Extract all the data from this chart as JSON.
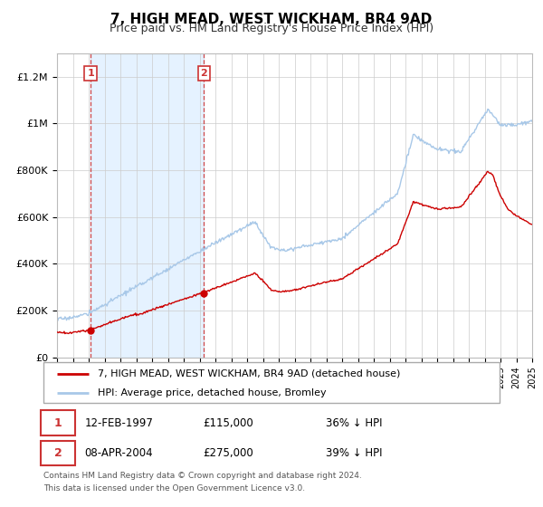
{
  "title": "7, HIGH MEAD, WEST WICKHAM, BR4 9AD",
  "subtitle": "Price paid vs. HM Land Registry's House Price Index (HPI)",
  "hpi_color": "#a8c8e8",
  "price_color": "#cc0000",
  "bg_shade_color": "#ddeeff",
  "ylim": [
    0,
    1300000
  ],
  "yticks": [
    0,
    200000,
    400000,
    600000,
    800000,
    1000000,
    1200000
  ],
  "ytick_labels": [
    "£0",
    "£200K",
    "£400K",
    "£600K",
    "£800K",
    "£1M",
    "£1.2M"
  ],
  "sale1_year": 1997.12,
  "sale1_value": 115000,
  "sale1_label": "1",
  "sale1_date": "12-FEB-1997",
  "sale1_price": "£115,000",
  "sale1_pct": "36% ↓ HPI",
  "sale2_year": 2004.27,
  "sale2_value": 275000,
  "sale2_label": "2",
  "sale2_date": "08-APR-2004",
  "sale2_price": "£275,000",
  "sale2_pct": "39% ↓ HPI",
  "legend_label1": "7, HIGH MEAD, WEST WICKHAM, BR4 9AD (detached house)",
  "legend_label2": "HPI: Average price, detached house, Bromley",
  "footnote1": "Contains HM Land Registry data © Crown copyright and database right 2024.",
  "footnote2": "This data is licensed under the Open Government Licence v3.0.",
  "xmin": 1995,
  "xmax": 2025
}
